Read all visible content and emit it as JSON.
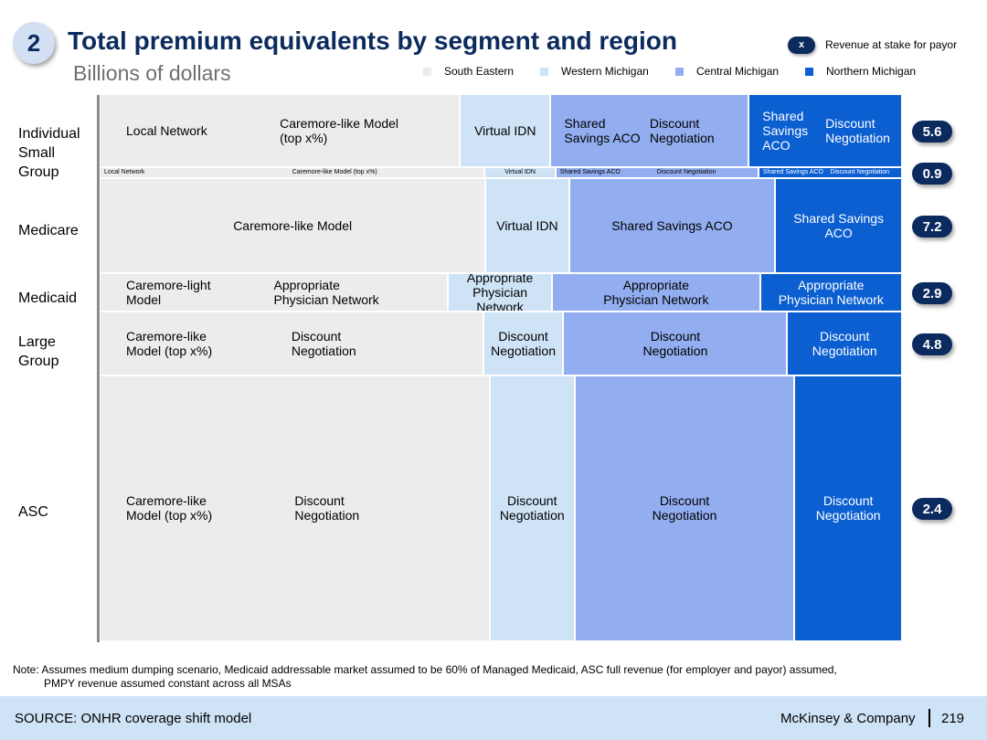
{
  "header": {
    "slide_number": "2",
    "title": "Total premium equivalents by segment and region",
    "subtitle": "Billions of dollars",
    "stake_legend_symbol": "x",
    "stake_legend_label": "Revenue at stake for payor"
  },
  "colors": {
    "south_eastern": "#ececec",
    "western_michigan": "#cfe3f7",
    "central_michigan": "#93aef0",
    "northern_michigan": "#0b5fd1",
    "dark_navy": "#0b2a5e"
  },
  "chart_data": {
    "type": "marimekko",
    "title": "Total premium equivalents by segment and region",
    "units": "Billions of dollars",
    "legend": [
      "South Eastern",
      "Western Michigan",
      "Central Michigan",
      "Northern Michigan"
    ],
    "rows": [
      {
        "label": "Individual Small Group",
        "revenue_at_stake": 5.6,
        "share_of_height": 0.134,
        "segments": [
          {
            "region": "South Eastern",
            "share": 0.449,
            "color": "#ececec",
            "lines": [
              "Local Network",
              "Caremore-like Model\n(top x%)"
            ]
          },
          {
            "region": "Western Michigan",
            "share": 0.113,
            "color": "#cfe3f7",
            "lines": [
              "Virtual IDN"
            ]
          },
          {
            "region": "Central Michigan",
            "share": 0.247,
            "color": "#93aef0",
            "lines": [
              "Shared\nSavings ACO",
              "Discount\nNegotiation"
            ]
          },
          {
            "region": "Northern Michigan",
            "share": 0.191,
            "color": "#0b5fd1",
            "lines": [
              "Shared\nSavings\nACO",
              "Discount\nNegotiation"
            ]
          }
        ]
      },
      {
        "label": "",
        "revenue_at_stake": 0.9,
        "share_of_height": 0.02,
        "segments": [
          {
            "region": "South Eastern",
            "share": 0.48,
            "color": "#ececec",
            "lines": [
              "Local Network",
              "Caremore-like Model (top x%)"
            ]
          },
          {
            "region": "Western Michigan",
            "share": 0.088,
            "color": "#cfe3f7",
            "lines": [
              "Virtual IDN"
            ]
          },
          {
            "region": "Central Michigan",
            "share": 0.253,
            "color": "#93aef0",
            "lines": [
              "Shared Savings ACO",
              "Discount Negotiation"
            ]
          },
          {
            "region": "Northern Michigan",
            "share": 0.179,
            "color": "#0b5fd1",
            "lines": [
              "Shared Savings ACO",
              "Discount Negotiation"
            ]
          }
        ]
      },
      {
        "label": "Medicare",
        "revenue_at_stake": 7.2,
        "share_of_height": 0.174,
        "segments": [
          {
            "region": "South Eastern",
            "share": 0.481,
            "color": "#ececec",
            "lines": [
              "Caremore-like Model"
            ]
          },
          {
            "region": "Western Michigan",
            "share": 0.104,
            "color": "#cfe3f7",
            "lines": [
              "Virtual IDN"
            ]
          },
          {
            "region": "Central Michigan",
            "share": 0.257,
            "color": "#93aef0",
            "lines": [
              "Shared Savings ACO"
            ]
          },
          {
            "region": "Northern Michigan",
            "share": 0.158,
            "color": "#0b5fd1",
            "lines": [
              "Shared Savings\nACO"
            ]
          }
        ]
      },
      {
        "label": "Medicaid",
        "revenue_at_stake": 2.9,
        "share_of_height": 0.07,
        "segments": [
          {
            "region": "South Eastern",
            "share": 0.434,
            "color": "#ececec",
            "lines": [
              "Caremore-light\nModel",
              "Appropriate\nPhysician Network"
            ]
          },
          {
            "region": "Western Michigan",
            "share": 0.13,
            "color": "#cfe3f7",
            "lines": [
              "Appropriate\nPhysician Network"
            ]
          },
          {
            "region": "Central Michigan",
            "share": 0.259,
            "color": "#93aef0",
            "lines": [
              "Appropriate\nPhysician Network"
            ]
          },
          {
            "region": "Northern Michigan",
            "share": 0.177,
            "color": "#0b5fd1",
            "lines": [
              "Appropriate\nPhysician Network"
            ]
          }
        ]
      },
      {
        "label": "Large Group",
        "revenue_at_stake": 4.8,
        "share_of_height": 0.116,
        "segments": [
          {
            "region": "South Eastern",
            "share": 0.478,
            "color": "#ececec",
            "lines": [
              "Caremore-like\nModel (top x%)",
              "Discount\nNegotiation"
            ]
          },
          {
            "region": "Western Michigan",
            "share": 0.1,
            "color": "#cfe3f7",
            "lines": [
              "Discount\nNegotiation"
            ]
          },
          {
            "region": "Central Michigan",
            "share": 0.279,
            "color": "#93aef0",
            "lines": [
              "Discount\nNegotiation"
            ]
          },
          {
            "region": "Northern Michigan",
            "share": 0.143,
            "color": "#0b5fd1",
            "lines": [
              "Discount\nNegotiation"
            ]
          }
        ]
      },
      {
        "label": "ASC",
        "revenue_at_stake": 2.4,
        "share_of_height": 0.486,
        "segments": [
          {
            "region": "South Eastern",
            "share": 0.486,
            "color": "#ececec",
            "lines": [
              "Caremore-like\nModel (top x%)",
              "Discount\nNegotiation"
            ]
          },
          {
            "region": "Western Michigan",
            "share": 0.106,
            "color": "#cfe3f7",
            "lines": [
              "Discount\nNegotiation"
            ]
          },
          {
            "region": "Central Michigan",
            "share": 0.274,
            "color": "#93aef0",
            "lines": [
              "Discount\nNegotiation"
            ]
          },
          {
            "region": "Northern Michigan",
            "share": 0.134,
            "color": "#0b5fd1",
            "lines": [
              "Discount\nNegotiation"
            ]
          }
        ]
      }
    ]
  },
  "note": {
    "line1": "Note: Assumes medium dumping scenario, Medicaid addressable market assumed to be 60% of Managed Medicaid, ASC full revenue (for employer and payor) assumed,",
    "line2": "PMPY revenue assumed constant across all MSAs"
  },
  "footer": {
    "source": "SOURCE: ONHR coverage shift model",
    "brand": "McKinsey & Company",
    "page_number": "219"
  }
}
